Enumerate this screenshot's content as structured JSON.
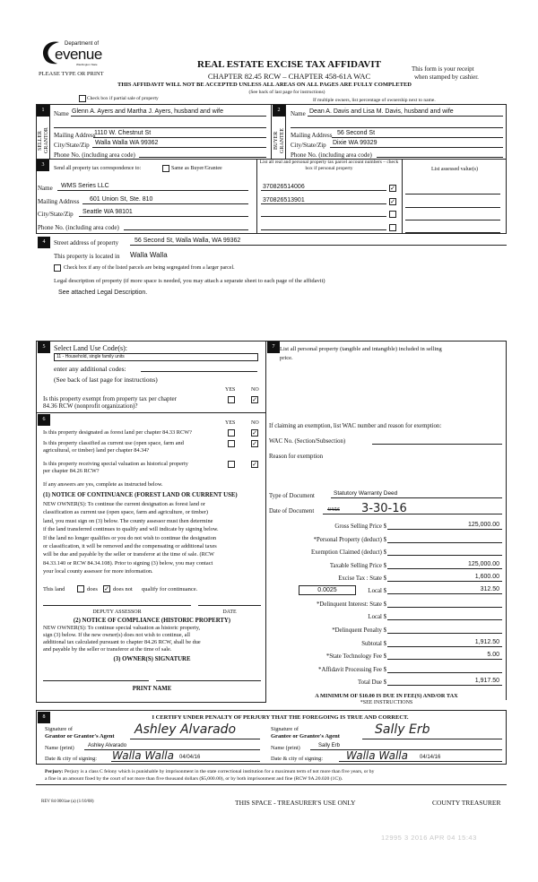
{
  "header": {
    "logo_top": "Department of",
    "logo_main": "evenue",
    "logo_sub": "Washington State",
    "please": "PLEASE TYPE OR PRINT",
    "title": "REAL ESTATE EXCISE TAX AFFIDAVIT",
    "chapter": "CHAPTER 82.45 RCW – CHAPTER 458-61A WAC",
    "warning": "THIS AFFIDAVIT WILL NOT BE ACCEPTED UNLESS ALL AREAS ON ALL PAGES ARE FULLY COMPLETED",
    "see_back": "(See back of last page for instructions)",
    "receipt1": "This form is your receipt",
    "receipt2": "when stamped by cashier.",
    "partial_sale": "Check box if partial sale of property",
    "partial_sale_checked": false,
    "multiple_owners": "If multiple owners, list percentage of ownership next to name."
  },
  "seller": {
    "num": "1",
    "side": "SELLER GRANTOR",
    "name_label": "Name",
    "name": "Glenn A. Ayers and Martha J. Ayers, husband and wife",
    "mail_label": "Mailing Address",
    "mail": "1110 W. Chestnut St",
    "city_label": "City/State/Zip",
    "city": "Walla Walla WA 99362",
    "phone_label": "Phone No. (including area code)"
  },
  "buyer": {
    "num": "2",
    "side": "BUYER GRANTEE",
    "name_label": "Name",
    "name": "Dean A. Davis and Lisa M. Davis, husband and wife",
    "mail_label": "Mailing Address",
    "mail": "56 Second St",
    "city_label": "City/State/Zip",
    "city": "Dixie WA 99329",
    "phone_label": "Phone No. (including area code)"
  },
  "tax_corr": {
    "num": "3",
    "send_label": "Send all property tax correspondence to:",
    "same_label": "Same as Buyer/Grantee",
    "same_checked": false,
    "name_label": "Name",
    "name": "WMS Series LLC",
    "mail_label": "Mailing Address",
    "mail": "601 Union St, Ste. 810",
    "city_label": "City/State/Zip",
    "city": "Seattle WA 98101",
    "phone_label": "Phone No. (including area code)",
    "parcel_header": "List all real and personal property tax parcel account numbers – check box if personal property",
    "assessed_header": "List assessed value(s)",
    "parcels": [
      {
        "number": "370826514006",
        "checked": true
      },
      {
        "number": "370826513901",
        "checked": true
      },
      {
        "number": "",
        "checked": false
      },
      {
        "number": "",
        "checked": false
      }
    ]
  },
  "property": {
    "num": "4",
    "street_label": "Street address of property",
    "street": "56 Second St, Walla Walla, WA 99362",
    "located_label": "This property is located in",
    "located": "Walla Walla",
    "segregated_label": "Check box if any of the listed parcels are being segregated from a larger parcel.",
    "segregated_checked": false,
    "legal_label": "Legal description of property (if more space is needed, you may attach a separate sheet to each page of the affidavit)",
    "legal": "See attached Legal Description."
  },
  "sec5": {
    "num": "5",
    "select_label": "Select Land Use Code(s):",
    "land_use": "11 - Household, single family units",
    "additional": "enter any additional codes:",
    "see_back": "(See back of last page for instructions)",
    "yes": "YES",
    "no": "NO",
    "exempt_q1": "Is this property exempt from property tax per chapter",
    "exempt_q2": "84.36 RCW (nonprofit organization)?"
  },
  "sec6": {
    "num": "6",
    "yes": "YES",
    "no": "NO",
    "q1": "Is this property designated as forest land per chapter 84.33 RCW?",
    "q2a": "Is this property classified as current use (open space, farm and",
    "q2b": "agricultural, or timber) land per chapter 84.34?",
    "q3a": "Is this property receiving special valuation as historical property",
    "q3b": "per chapter 84.26 RCW?",
    "if_yes": "If any answers are yes, complete as instructed below.",
    "notice1": "(1) NOTICE OF CONTINUANCE (FOREST LAND OR CURRENT USE)",
    "notice1_text": [
      "NEW OWNER(S): To continue the current designation as forest land or",
      "classification as current use (open space, farm and agriculture, or timber)",
      "land, you must sign on (3) below. The county assessor must then determine",
      "if the land transferred continues to qualify and will indicate by signing below.",
      "If the land no longer qualifies or you do not wish to continue the designation",
      "or classification, it will be removed and the compensating or additional taxes",
      "will be due and payable by the seller or transferor at the time of sale. (RCW",
      "84.33.140 or RCW 84.34.108). Prior to signing (3) below, you may contact",
      "your local county assessor for more information."
    ],
    "this_land": "This land",
    "does": "does",
    "does_not": "does not",
    "qualify": "qualify for continuance.",
    "deputy": "DEPUTY ASSESSOR",
    "date": "DATE",
    "notice2": "(2) NOTICE OF COMPLIANCE (HISTORIC PROPERTY)",
    "notice2_text": [
      "NEW OWNER(S): To continue special valuation as historic property,",
      "sign (3) below. If the new owner(s) does not wish to continue, all",
      "additional tax calculated pursuant to chapter 84.26 RCW, shall be due",
      "and payable by the seller or transferor at the time of sale."
    ],
    "owner_sig": "(3) OWNER(S) SIGNATURE",
    "print_name": "PRINT NAME"
  },
  "sec7": {
    "num": "7",
    "list1": "List all  personal property (tangible and intangible) included in selling",
    "list2": "price.",
    "exemption": "If claiming an exemption, list WAC number and reason for exemption:",
    "wac": "WAC No. (Section/Subsection)",
    "reason": "Reason for exemption",
    "doc_type_label": "Type of Document",
    "doc_type": "Statutory Warranty Deed",
    "doc_date_label": "Date of Document",
    "doc_date_struck": "4/4/16",
    "doc_date": "3-30-16",
    "local_rate": "0.0025",
    "rows": [
      {
        "label": "Gross Selling Price $",
        "value": "125,000.00"
      },
      {
        "label": "*Personal Property (deduct) $",
        "value": ""
      },
      {
        "label": "Exemption Claimed (deduct) $",
        "value": ""
      },
      {
        "label": "Taxable Selling Price $",
        "value": "125,000.00"
      },
      {
        "label": "Excise Tax : State $",
        "value": "1,600.00"
      },
      {
        "label": "Local $",
        "value": "312.50"
      },
      {
        "label": "*Delinquent Interest: State $",
        "value": ""
      },
      {
        "label": "Local $",
        "value": ""
      },
      {
        "label": "*Delinquent Penalty $",
        "value": ""
      },
      {
        "label": "Subtotal $",
        "value": "1,912.50"
      },
      {
        "label": "*State Technology Fee $",
        "value": "5.00"
      },
      {
        "label": "*Affidavit Processing Fee $",
        "value": ""
      },
      {
        "label": "Total Due $",
        "value": "1,917.50"
      }
    ],
    "minimum": "A MINIMUM OF $10.00 IS DUE IN FEE(S) AND/OR TAX",
    "see_instr": "*SEE INSTRUCTIONS"
  },
  "sec8": {
    "num": "8",
    "certify": "I CERTIFY UNDER PENALTY OF PERJURY THAT THE FOREGOING IS TRUE AND CORRECT.",
    "sig_of": "Signature of",
    "grantor_agent": "Grantor or Grantor's Agent",
    "grantee_agent": "Grantee or Grantee's Agent",
    "grantor_sig": "Ashley Alvarado",
    "grantee_sig": "Sally Erb",
    "name_print": "Name (print)",
    "grantor_name": "Ashley Alvarado",
    "grantee_name": "Sally Erb",
    "date_city": "Date & city of signing:",
    "grantor_city": "Walla Walla",
    "grantor_date": "04/04/16",
    "grantee_city": "Walla Walla",
    "grantee_date": "04/14/16"
  },
  "perjury": {
    "label": "Perjury:",
    "text1": " Perjury is a class C felony which is punishable by imprisonment in the state correctional institution for a maximum term of not more than five years, or by",
    "text2": "a fine in an amount fixed by the court of not more than five thousand dollars ($5,000.00), or by both imprisonment and fine (RCW 9A.20.020 (1C))."
  },
  "footer": {
    "rev": "REV 84 0001ae (a) (1/10/08)",
    "treasurer_use": "THIS SPACE - TREASURER'S USE ONLY",
    "county": "COUNTY TREASURER",
    "stamp": "12995 3 2016 APR 04 15:43"
  }
}
